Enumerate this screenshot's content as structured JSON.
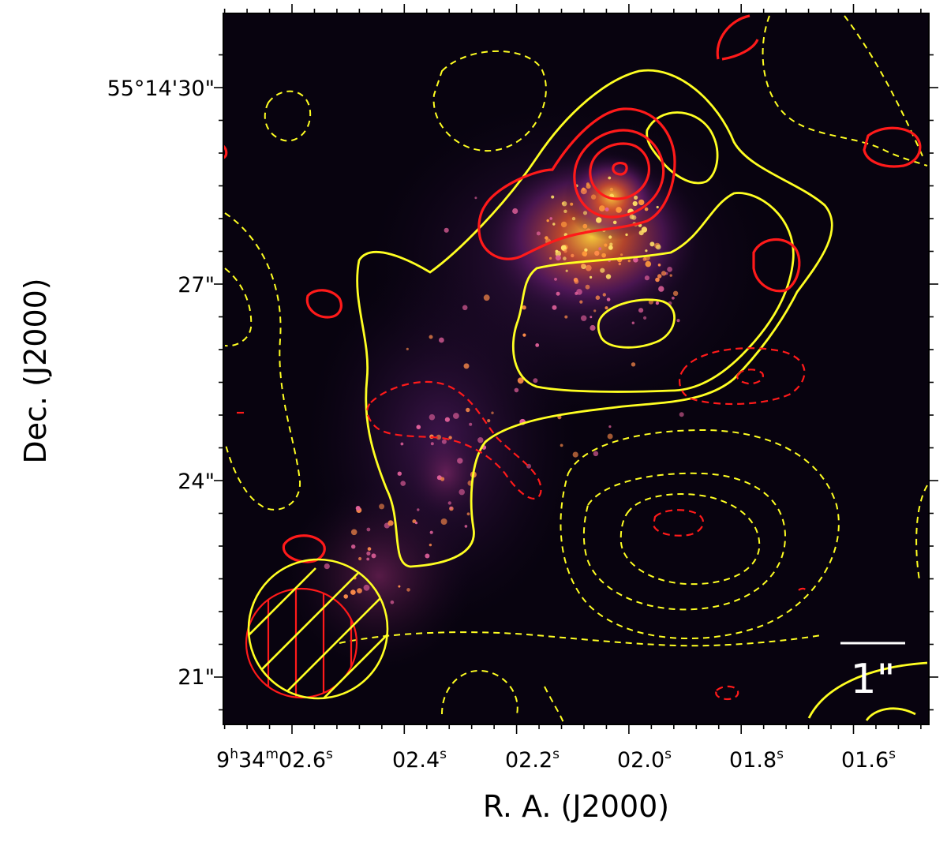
{
  "axes": {
    "xlabel": "R. A. (J2000)",
    "ylabel": "Dec. (J2000)"
  },
  "x_ticks": [
    {
      "prefix": "9",
      "h": "h",
      "mid": "34",
      "m": "m",
      "value": "02.6",
      "s": "s"
    },
    {
      "prefix": "",
      "h": "",
      "mid": "",
      "m": "",
      "value": "02.4",
      "s": "s"
    },
    {
      "prefix": "",
      "h": "",
      "mid": "",
      "m": "",
      "value": "02.2",
      "s": "s"
    },
    {
      "prefix": "",
      "h": "",
      "mid": "",
      "m": "",
      "value": "02.0",
      "s": "s"
    },
    {
      "prefix": "",
      "h": "",
      "mid": "",
      "m": "",
      "value": "01.8",
      "s": "s"
    },
    {
      "prefix": "",
      "h": "",
      "mid": "",
      "m": "",
      "value": "01.6",
      "s": "s"
    }
  ],
  "y_ticks": [
    "55°14'30\"",
    "27\"",
    "24\"",
    "21\""
  ],
  "scale_bar": {
    "label": "1\""
  },
  "colors": {
    "background": "#08030f",
    "positive_contour_1": "#ffff22",
    "positive_contour_2": "#ff1a1a",
    "beam_1": "#ffff22",
    "beam_2": "#ff1a1a"
  }
}
